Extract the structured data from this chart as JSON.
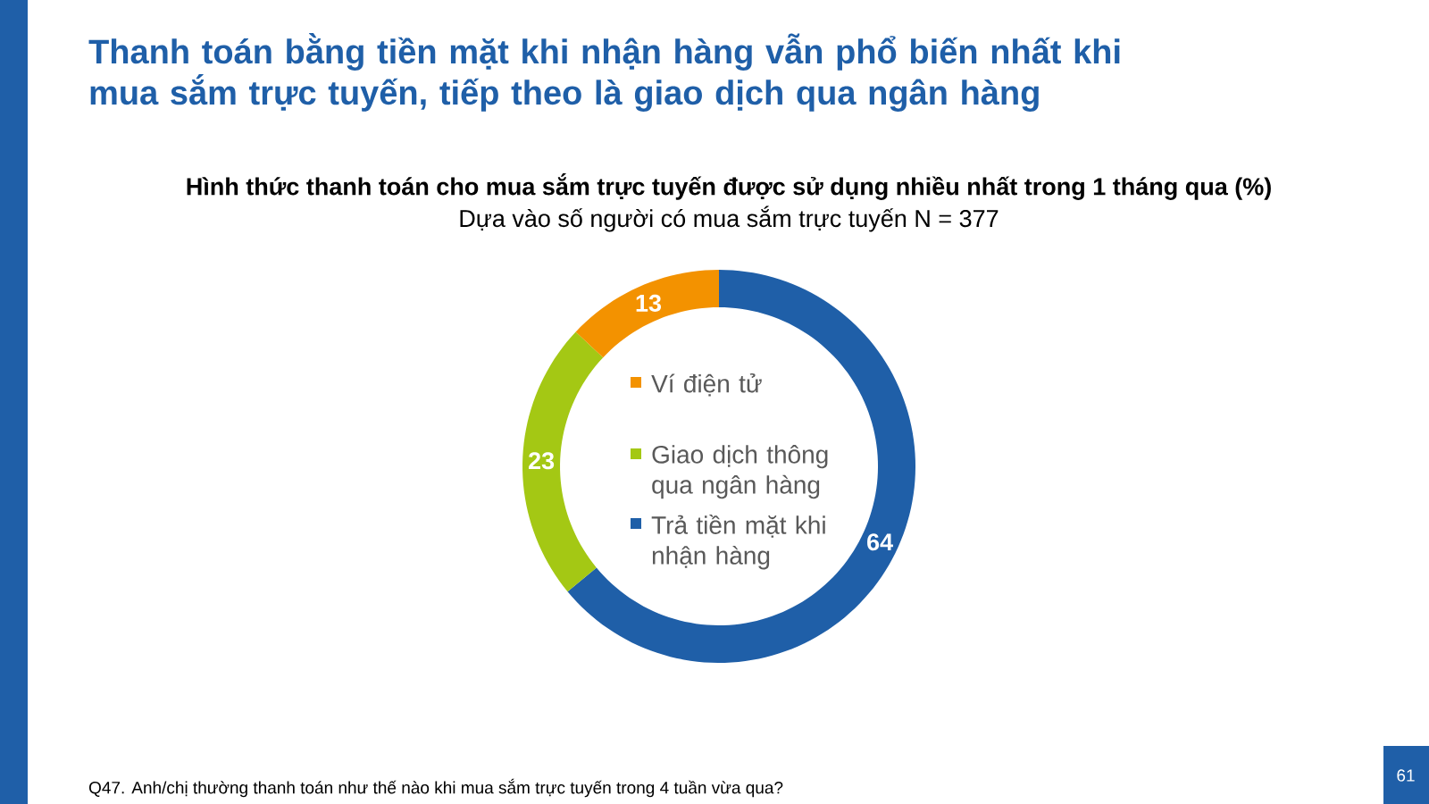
{
  "chart_data": {
    "type": "donut",
    "title": "Thanh toán bằng tiền mặt khi nhận hàng vẫn phổ biến nhất khi mua sắm trực tuyến, tiếp theo là giao dịch qua ngân hàng",
    "subtitle": "Hình thức thanh toán cho mua sắm trực tuyến được sử dụng nhiều nhất trong 1 tháng qua (%)",
    "categories": [
      "Trả tiền mặt khi nhận hàng",
      "Giao dịch thông qua ngân hàng",
      "Ví điện tử"
    ],
    "values": [
      64,
      23,
      13
    ],
    "colors": [
      "#1f5fa8",
      "#a4c814",
      "#f39200"
    ],
    "data_labels": true,
    "legend": "center",
    "annotations": [
      "Dựa vào số người có mua sắm trực tuyến N = 377",
      "Q47. Anh/chị thường thanh toán như thế nào khi mua sắm trực tuyến trong 4 tuần vừa qua?",
      "61"
    ]
  }
}
